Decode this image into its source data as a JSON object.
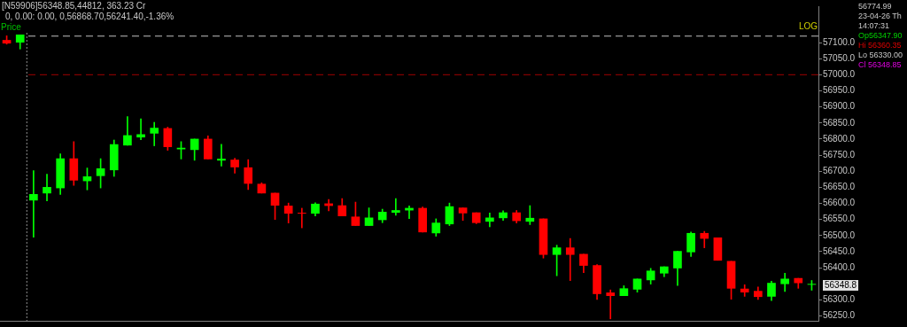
{
  "chart_data": {
    "type": "candlestick",
    "title": "[N59906]56348.85,44812, 363.23 Cr",
    "subtitle": "0, 0.00: 0.00, 0,56868.70,56241.40,-1.36%",
    "categories": [
      null,
      null,
      null,
      null,
      null,
      null,
      null,
      null,
      null,
      null,
      null,
      null,
      null,
      null,
      null,
      null,
      null,
      null,
      null,
      null,
      null,
      null,
      null,
      null,
      null,
      null,
      null,
      null,
      null,
      null,
      null,
      null,
      null,
      null,
      null,
      null,
      null,
      null,
      null,
      null,
      null,
      null,
      null,
      null,
      null,
      null,
      null,
      null,
      null,
      null,
      null,
      null,
      null,
      null,
      null,
      null,
      null,
      null,
      null,
      null,
      null
    ],
    "ohlc": [
      [
        57107,
        57121,
        57095,
        57098
      ],
      [
        57101,
        57124,
        57080,
        57124
      ],
      [
        56610,
        56702,
        56495,
        56628
      ],
      [
        56632,
        56691,
        56608,
        56650
      ],
      [
        56648,
        56754,
        56628,
        56739
      ],
      [
        56739,
        56792,
        56656,
        56672
      ],
      [
        56670,
        56710,
        56642,
        56683
      ],
      [
        56686,
        56739,
        56648,
        56708
      ],
      [
        56704,
        56797,
        56684,
        56783
      ],
      [
        56781,
        56870,
        56781,
        56811
      ],
      [
        56806,
        56863,
        56798,
        56814
      ],
      [
        56818,
        56852,
        56779,
        56834
      ],
      [
        56833,
        56837,
        56765,
        56776
      ],
      [
        56769,
        56792,
        56738,
        56772
      ],
      [
        56767,
        56800,
        56734,
        56800
      ],
      [
        56800,
        56810,
        56738,
        56738
      ],
      [
        56734,
        56784,
        56716,
        56738
      ],
      [
        56735,
        56740,
        56694,
        56713
      ],
      [
        56711,
        56736,
        56643,
        56662
      ],
      [
        56660,
        56664,
        56632,
        56632
      ],
      [
        56632,
        56632,
        56550,
        56594
      ],
      [
        56592,
        56601,
        56539,
        56569
      ],
      [
        56570,
        56585,
        56524,
        56569
      ],
      [
        56569,
        56602,
        56561,
        56598
      ],
      [
        56599,
        56612,
        56577,
        56593
      ],
      [
        56593,
        56615,
        56561,
        56561
      ],
      [
        56558,
        56604,
        56531,
        56531
      ],
      [
        56531,
        56586,
        56531,
        56555
      ],
      [
        56549,
        56582,
        56540,
        56573
      ],
      [
        56572,
        56615,
        56563,
        56578
      ],
      [
        56579,
        56592,
        56553,
        56585
      ],
      [
        56585,
        56589,
        56511,
        56511
      ],
      [
        56508,
        56552,
        56498,
        56539
      ],
      [
        56536,
        56601,
        56531,
        56590
      ],
      [
        56586,
        56586,
        56547,
        56570
      ],
      [
        56571,
        56571,
        56537,
        56540
      ],
      [
        56544,
        56570,
        56527,
        56555
      ],
      [
        56555,
        56577,
        56547,
        56571
      ],
      [
        56571,
        56578,
        56539,
        56546
      ],
      [
        56544,
        56593,
        56534,
        56554
      ],
      [
        56552,
        56552,
        56430,
        56441
      ],
      [
        56441,
        56470,
        56375,
        56462
      ],
      [
        56462,
        56491,
        56360,
        56441
      ],
      [
        56442,
        56442,
        56385,
        56407
      ],
      [
        56407,
        56410,
        56301,
        56319
      ],
      [
        56322,
        56331,
        56241,
        56313
      ],
      [
        56313,
        56344,
        56313,
        56335
      ],
      [
        56333,
        56365,
        56324,
        56365
      ],
      [
        56362,
        56398,
        56349,
        56390
      ],
      [
        56383,
        56403,
        56372,
        56403
      ],
      [
        56399,
        56451,
        56345,
        56451
      ],
      [
        56449,
        56511,
        56435,
        56507
      ],
      [
        56507,
        56513,
        56462,
        56491
      ],
      [
        56493,
        56493,
        56423,
        56423
      ],
      [
        56420,
        56420,
        56302,
        56336
      ],
      [
        56334,
        56347,
        56311,
        56324
      ],
      [
        56327,
        56340,
        56301,
        56310
      ],
      [
        56311,
        56358,
        56298,
        56352
      ],
      [
        56350,
        56383,
        56326,
        56365
      ],
      [
        56367,
        56367,
        56336,
        56353
      ],
      [
        56347.9,
        56360.35,
        56330,
        56348.85
      ]
    ],
    "colors": [
      "#ff0000",
      "#00ff00",
      "#00ff00",
      "#00ff00",
      "#00ff00",
      "#ff0000",
      "#00ff00",
      "#00ff00",
      "#00ff00",
      "#00ff00",
      "#00ff00",
      "#00ff00",
      "#ff0000",
      "#00ff00",
      "#00ff00",
      "#ff0000",
      "#00ff00",
      "#ff0000",
      "#ff0000",
      "#ff0000",
      "#ff0000",
      "#ff0000",
      "#ff0000",
      "#00ff00",
      "#ff0000",
      "#ff0000",
      "#ff0000",
      "#00ff00",
      "#00ff00",
      "#00ff00",
      "#00ff00",
      "#ff0000",
      "#00ff00",
      "#00ff00",
      "#ff0000",
      "#ff0000",
      "#00ff00",
      "#00ff00",
      "#ff0000",
      "#00ff00",
      "#ff0000",
      "#00ff00",
      "#ff0000",
      "#ff0000",
      "#ff0000",
      "#ff0000",
      "#00ff00",
      "#00ff00",
      "#00ff00",
      "#00ff00",
      "#00ff00",
      "#00ff00",
      "#ff0000",
      "#ff0000",
      "#ff0000",
      "#ff0000",
      "#ff0000",
      "#00ff00",
      "#00ff00",
      "#ff0000",
      "#00ff00"
    ],
    "ylim": [
      56235,
      57213
    ],
    "yticks": [
      {
        "value": 56250,
        "label": "56250.0"
      },
      {
        "value": 56300,
        "label": "56300.0"
      },
      {
        "value": 56400,
        "label": "56400.0"
      },
      {
        "value": 56450,
        "label": "56450.0"
      },
      {
        "value": 56500,
        "label": "56500.0"
      },
      {
        "value": 56550,
        "label": "56550.0"
      },
      {
        "value": 56600,
        "label": "56600.0"
      },
      {
        "value": 56650,
        "label": "56650.0"
      },
      {
        "value": 56700,
        "label": "56700.0"
      },
      {
        "value": 56750,
        "label": "56750.0"
      },
      {
        "value": 56800,
        "label": "56800.0"
      },
      {
        "value": 56850,
        "label": "56850.0"
      },
      {
        "value": 56900,
        "label": "56900.0"
      },
      {
        "value": 56950,
        "label": "56950.0"
      },
      {
        "value": 57000,
        "label": "57000.0"
      },
      {
        "value": 57050,
        "label": "57050.0"
      },
      {
        "value": 57100,
        "label": "57100.0"
      }
    ],
    "ref_lines": [
      {
        "axis": "y",
        "value": 57120,
        "color": "#c0c0c0",
        "line_style": "dashed"
      },
      {
        "axis": "y",
        "value": 57000,
        "color": "#a00000",
        "line_style": "dashed"
      }
    ],
    "annotations": [
      "Price",
      "LOG",
      "56774.99",
      "23-04-26 Th",
      "14:07:31",
      "Op56347.90",
      "Hi 56360.35",
      "Lo 56330.00",
      "Cl 56348.85",
      "56348.8"
    ],
    "grid": false,
    "legend": false,
    "tick_labels": "y"
  }
}
